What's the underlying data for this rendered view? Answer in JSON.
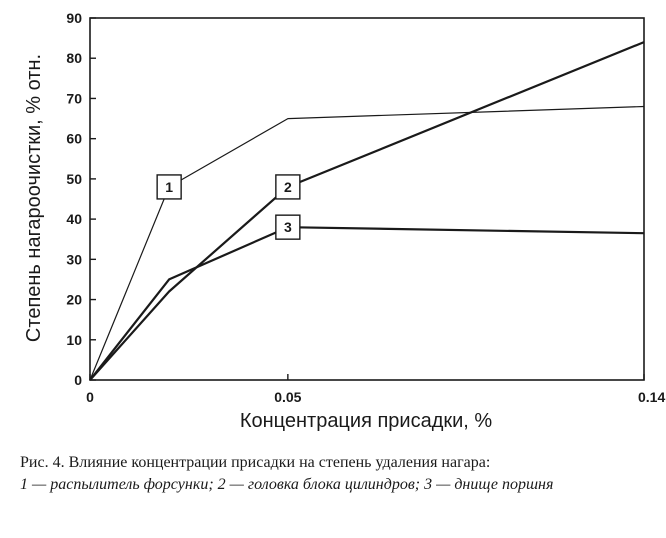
{
  "chart_data": {
    "type": "line",
    "xlabel": "Концентрация присадки, %",
    "ylabel": "Степень нагароочистки, % отн.",
    "xlim": [
      0,
      0.14
    ],
    "ylim": [
      0,
      90
    ],
    "x_ticks": [
      {
        "value": 0,
        "label": "0"
      },
      {
        "value": 0.05,
        "label": "0.05"
      },
      {
        "value": 0.14,
        "label": "0.14"
      }
    ],
    "y_ticks": [
      0,
      10,
      20,
      30,
      40,
      50,
      60,
      70,
      80,
      90
    ],
    "grid": false,
    "series": [
      {
        "name": "1",
        "x": [
          0,
          0.02,
          0.05,
          0.14
        ],
        "y": [
          0,
          48,
          65,
          68
        ],
        "label_at": [
          0.02,
          48
        ],
        "stroke_width": 1.2
      },
      {
        "name": "2",
        "x": [
          0,
          0.02,
          0.05,
          0.14
        ],
        "y": [
          0,
          22,
          48,
          84
        ],
        "label_at": [
          0.05,
          48
        ],
        "stroke_width": 2.2
      },
      {
        "name": "3",
        "x": [
          0,
          0.02,
          0.05,
          0.14
        ],
        "y": [
          0,
          25,
          38,
          36.5
        ],
        "label_at": [
          0.05,
          38
        ],
        "stroke_width": 2.2
      }
    ]
  },
  "caption": {
    "prefix": "Рис. 4. Влияние концентрации присадки на степень удаления нагара:",
    "legend": "1 — распылитель форсунки; 2 — головка блока цилиндров; 3 — днище поршня"
  },
  "colors": {
    "ink": "#1a1a1a",
    "background": "#ffffff"
  }
}
